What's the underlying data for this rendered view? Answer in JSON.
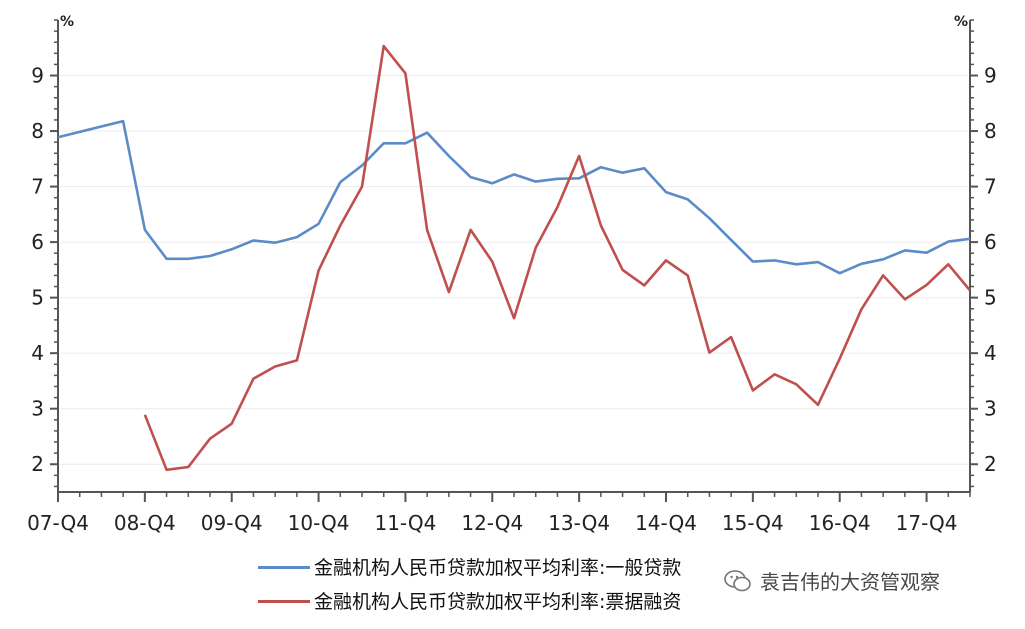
{
  "chart_data": {
    "type": "line",
    "y_unit_left": "%",
    "y_unit_right": "%",
    "ylim": [
      1.5,
      10
    ],
    "yticks": [
      2,
      3,
      4,
      5,
      6,
      7,
      8,
      9
    ],
    "x_tick_labels": [
      "07-Q4",
      "08-Q4",
      "09-Q4",
      "10-Q4",
      "11-Q4",
      "12-Q4",
      "13-Q4",
      "14-Q4",
      "15-Q4",
      "16-Q4",
      "17-Q4"
    ],
    "x_range": [
      0,
      42
    ],
    "series": [
      {
        "name": "金融机构人民币贷款加权平均利率:一般贷款",
        "color": "#5b8cc8",
        "x": [
          0,
          3,
          4,
          5,
          6,
          7,
          8,
          9,
          10,
          11,
          12,
          13,
          14,
          15,
          16,
          17,
          18,
          19,
          20,
          21,
          22,
          23,
          24,
          25,
          26,
          27,
          28,
          29,
          30,
          31,
          32,
          33,
          34,
          35,
          36,
          37,
          38,
          39,
          40,
          41,
          42
        ],
        "values": [
          7.89,
          8.18,
          6.22,
          5.7,
          5.7,
          5.75,
          5.87,
          6.03,
          5.99,
          6.09,
          6.33,
          7.08,
          7.38,
          7.78,
          7.78,
          7.97,
          7.55,
          7.17,
          7.06,
          7.22,
          7.09,
          7.14,
          7.15,
          7.35,
          7.25,
          7.33,
          6.9,
          6.77,
          6.43,
          6.04,
          5.65,
          5.67,
          5.6,
          5.64,
          5.44,
          5.61,
          5.69,
          5.85,
          5.81,
          6.01,
          6.06
        ]
      },
      {
        "name": "金融机构人民币贷款加权平均利率:票据融资",
        "color": "#c0504d",
        "x": [
          4,
          5,
          6,
          7,
          8,
          9,
          10,
          11,
          12,
          13,
          14,
          15,
          16,
          17,
          18,
          19,
          20,
          21,
          22,
          23,
          24,
          25,
          26,
          27,
          28,
          29,
          30,
          31,
          32,
          33,
          34,
          35,
          36,
          37,
          38,
          39,
          40,
          41,
          42
        ],
        "values": [
          2.89,
          1.9,
          1.95,
          2.46,
          2.73,
          3.54,
          3.76,
          3.87,
          5.49,
          6.3,
          7.0,
          9.53,
          9.04,
          6.22,
          5.1,
          6.22,
          5.65,
          4.63,
          5.9,
          6.63,
          7.55,
          6.3,
          5.5,
          5.22,
          5.67,
          5.4,
          4.01,
          4.29,
          3.33,
          3.62,
          3.44,
          3.07,
          3.9,
          4.79,
          5.4,
          4.97,
          5.23,
          5.6,
          5.13
        ]
      }
    ]
  },
  "watermark": "袁吉伟的大资管观察"
}
